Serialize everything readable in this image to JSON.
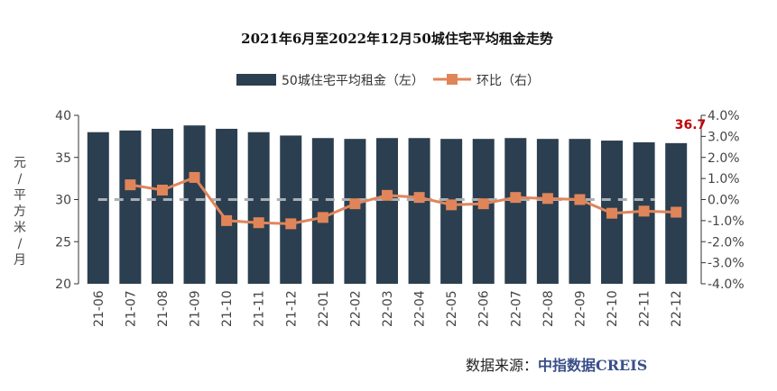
{
  "chart_data": {
    "type": "bar+line",
    "title": "2021年6月至2022年12月50城住宅平均租金走势",
    "ylabel": "元/平方米/月",
    "ylim": [
      20,
      40
    ],
    "yticks": [
      "20",
      "25",
      "30",
      "35",
      "40"
    ],
    "y2lim": [
      -4,
      4
    ],
    "y2ticks": [
      "-4.0%",
      "-3.0%",
      "-2.0%",
      "-1.0%",
      "0.0%",
      "1.0%",
      "2.0%",
      "3.0%",
      "4.0%"
    ],
    "categories": [
      "21-06",
      "21-07",
      "21-08",
      "21-09",
      "21-10",
      "21-11",
      "21-12",
      "22-01",
      "22-02",
      "22-03",
      "22-04",
      "22-05",
      "22-06",
      "22-07",
      "22-08",
      "22-09",
      "22-10",
      "22-11",
      "22-12"
    ],
    "series": [
      {
        "name": "50城住宅平均租金（左）",
        "type": "bar",
        "axis": "left",
        "color": "#2b3f50",
        "values": [
          38.0,
          38.2,
          38.4,
          38.8,
          38.4,
          38.0,
          37.6,
          37.3,
          37.2,
          37.3,
          37.3,
          37.2,
          37.2,
          37.3,
          37.2,
          37.2,
          37.0,
          36.8,
          36.7
        ]
      },
      {
        "name": "环比（右）",
        "type": "line",
        "axis": "right",
        "color": "#e0855a",
        "values": [
          null,
          0.7,
          0.45,
          1.05,
          -1.0,
          -1.1,
          -1.15,
          -0.85,
          -0.2,
          0.2,
          0.1,
          -0.25,
          -0.2,
          0.1,
          0.05,
          0.0,
          -0.65,
          -0.55,
          -0.6
        ]
      }
    ],
    "annotation": {
      "text": "36.7",
      "color": "#c00000"
    },
    "reference_line": {
      "value": 0,
      "axis": "right",
      "style": "dashed",
      "color": "#aab0b5"
    },
    "legend": "top"
  },
  "source": {
    "label": "数据来源：",
    "name": "中指数据CREIS"
  }
}
